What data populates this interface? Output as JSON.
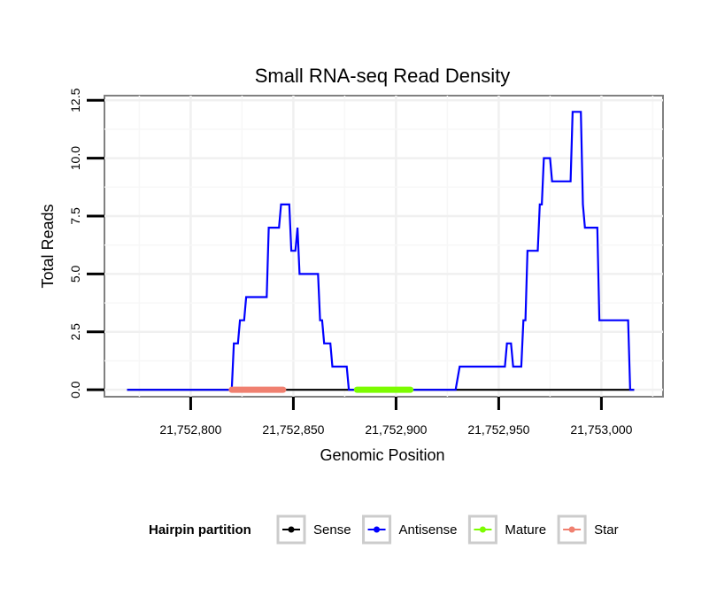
{
  "chart_data": {
    "type": "line",
    "title": "Small RNA-seq Read Density",
    "xlabel": "Genomic Position",
    "ylabel": "Total Reads",
    "xlim": [
      21752758,
      21753030
    ],
    "ylim": [
      -0.3,
      12.7
    ],
    "xticks": [
      21752800,
      21752850,
      21752900,
      21752950,
      21753000
    ],
    "xtick_labels": [
      "21,752,800",
      "21,752,850",
      "21,752,900",
      "21,752,950",
      "21,753,000"
    ],
    "yticks": [
      0,
      2.5,
      5,
      7.5,
      10,
      12.5
    ],
    "ytick_labels": [
      "0.0",
      "2.5",
      "5.0",
      "7.5",
      "10.0",
      "12.5"
    ],
    "grid": true,
    "legend": {
      "title": "Hairpin partition",
      "position": "bottom",
      "entries": [
        "Sense",
        "Antisense",
        "Mature",
        "Star"
      ]
    },
    "series": [
      {
        "name": "Sense",
        "color": "#000000",
        "x": [
          21752769,
          21753016
        ],
        "y": [
          0,
          0
        ]
      },
      {
        "name": "Antisense",
        "color": "#0000ff",
        "x": [
          21752769,
          21752820,
          21752821,
          21752823,
          21752824,
          21752826,
          21752827,
          21752829,
          21752830,
          21752837,
          21752838,
          21752843,
          21752844,
          21752848,
          21752849,
          21752851,
          21752852,
          21752853,
          21752855,
          21752862,
          21752863,
          21752864,
          21752865,
          21752868,
          21752869,
          21752876,
          21752877,
          21752929,
          21752931,
          21752953,
          21752954,
          21752956,
          21752957,
          21752961,
          21752962,
          21752963,
          21752964,
          21752969,
          21752970,
          21752971,
          21752972,
          21752975,
          21752976,
          21752985,
          21752986,
          21752990,
          21752991,
          21752992,
          21752998,
          21752999,
          21753013,
          21753014,
          21753016
        ],
        "y": [
          0,
          0,
          2,
          2,
          3,
          3,
          4,
          4,
          4,
          4,
          7,
          7,
          8,
          8,
          6,
          6,
          7,
          5,
          5,
          5,
          3,
          3,
          2,
          2,
          1,
          1,
          0,
          0,
          1,
          1,
          2,
          2,
          1,
          1,
          3,
          3,
          6,
          6,
          8,
          8,
          10,
          10,
          9,
          9,
          12,
          12,
          8,
          7,
          7,
          3,
          3,
          0,
          0
        ]
      }
    ],
    "segments": [
      {
        "name": "Mature",
        "color": "#7cfc00",
        "x": [
          21752881,
          21752907
        ],
        "y": 0
      },
      {
        "name": "Star",
        "color": "#f08070",
        "x": [
          21752820,
          21752845
        ],
        "y": 0
      }
    ]
  }
}
